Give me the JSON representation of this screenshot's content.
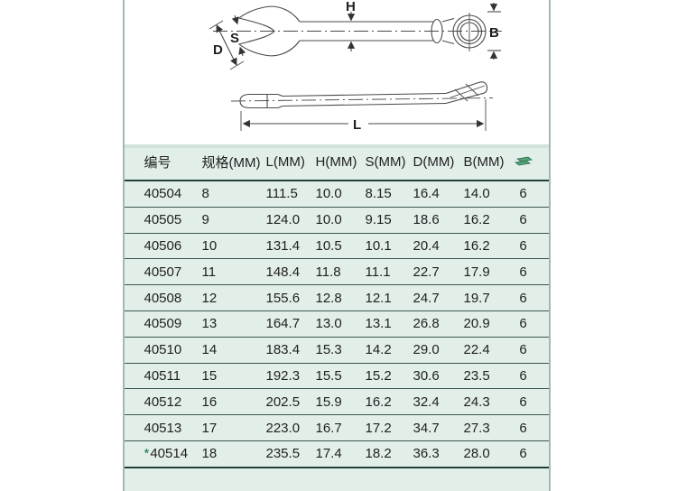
{
  "diagram": {
    "name": "combination-wrench-dimension-drawing",
    "labels": {
      "h": "H",
      "b": "B",
      "d": "D",
      "s": "S",
      "l": "L"
    }
  },
  "table": {
    "columns": [
      "编号",
      "规格(MM)",
      "L(MM)",
      "H(MM)",
      "S(MM)",
      "D(MM)",
      "B(MM)"
    ],
    "qty_icon": "stacked-boxes-icon",
    "star_prefix": "*",
    "rows": [
      {
        "no": "40504",
        "star": false,
        "spec": "8",
        "l": "111.5",
        "h": "10.0",
        "s": "8.15",
        "d": "16.4",
        "b": "14.0",
        "qty": "6"
      },
      {
        "no": "40505",
        "star": false,
        "spec": "9",
        "l": "124.0",
        "h": "10.0",
        "s": "9.15",
        "d": "18.6",
        "b": "16.2",
        "qty": "6"
      },
      {
        "no": "40506",
        "star": false,
        "spec": "10",
        "l": "131.4",
        "h": "10.5",
        "s": "10.1",
        "d": "20.4",
        "b": "16.2",
        "qty": "6"
      },
      {
        "no": "40507",
        "star": false,
        "spec": "11",
        "l": "148.4",
        "h": "11.8",
        "s": "11.1",
        "d": "22.7",
        "b": "17.9",
        "qty": "6"
      },
      {
        "no": "40508",
        "star": false,
        "spec": "12",
        "l": "155.6",
        "h": "12.8",
        "s": "12.1",
        "d": "24.7",
        "b": "19.7",
        "qty": "6"
      },
      {
        "no": "40509",
        "star": false,
        "spec": "13",
        "l": "164.7",
        "h": "13.0",
        "s": "13.1",
        "d": "26.8",
        "b": "20.9",
        "qty": "6"
      },
      {
        "no": "40510",
        "star": false,
        "spec": "14",
        "l": "183.4",
        "h": "15.3",
        "s": "14.2",
        "d": "29.0",
        "b": "22.4",
        "qty": "6"
      },
      {
        "no": "40511",
        "star": false,
        "spec": "15",
        "l": "192.3",
        "h": "15.5",
        "s": "15.2",
        "d": "30.6",
        "b": "23.5",
        "qty": "6"
      },
      {
        "no": "40512",
        "star": false,
        "spec": "16",
        "l": "202.5",
        "h": "15.9",
        "s": "16.2",
        "d": "32.4",
        "b": "24.3",
        "qty": "6"
      },
      {
        "no": "40513",
        "star": false,
        "spec": "17",
        "l": "223.0",
        "h": "16.7",
        "s": "17.2",
        "d": "34.7",
        "b": "27.3",
        "qty": "6"
      },
      {
        "no": "40514",
        "star": true,
        "spec": "18",
        "l": "235.5",
        "h": "17.4",
        "s": "18.2",
        "d": "36.3",
        "b": "28.0",
        "qty": "6"
      }
    ],
    "colors": {
      "table_bg": "#e2efe8",
      "rule_strong": "#22403a",
      "rule_light": "#3c5550",
      "page_border": "#a3b8b1",
      "star_color": "#1b6e55",
      "icon_green": "#55a077"
    }
  }
}
